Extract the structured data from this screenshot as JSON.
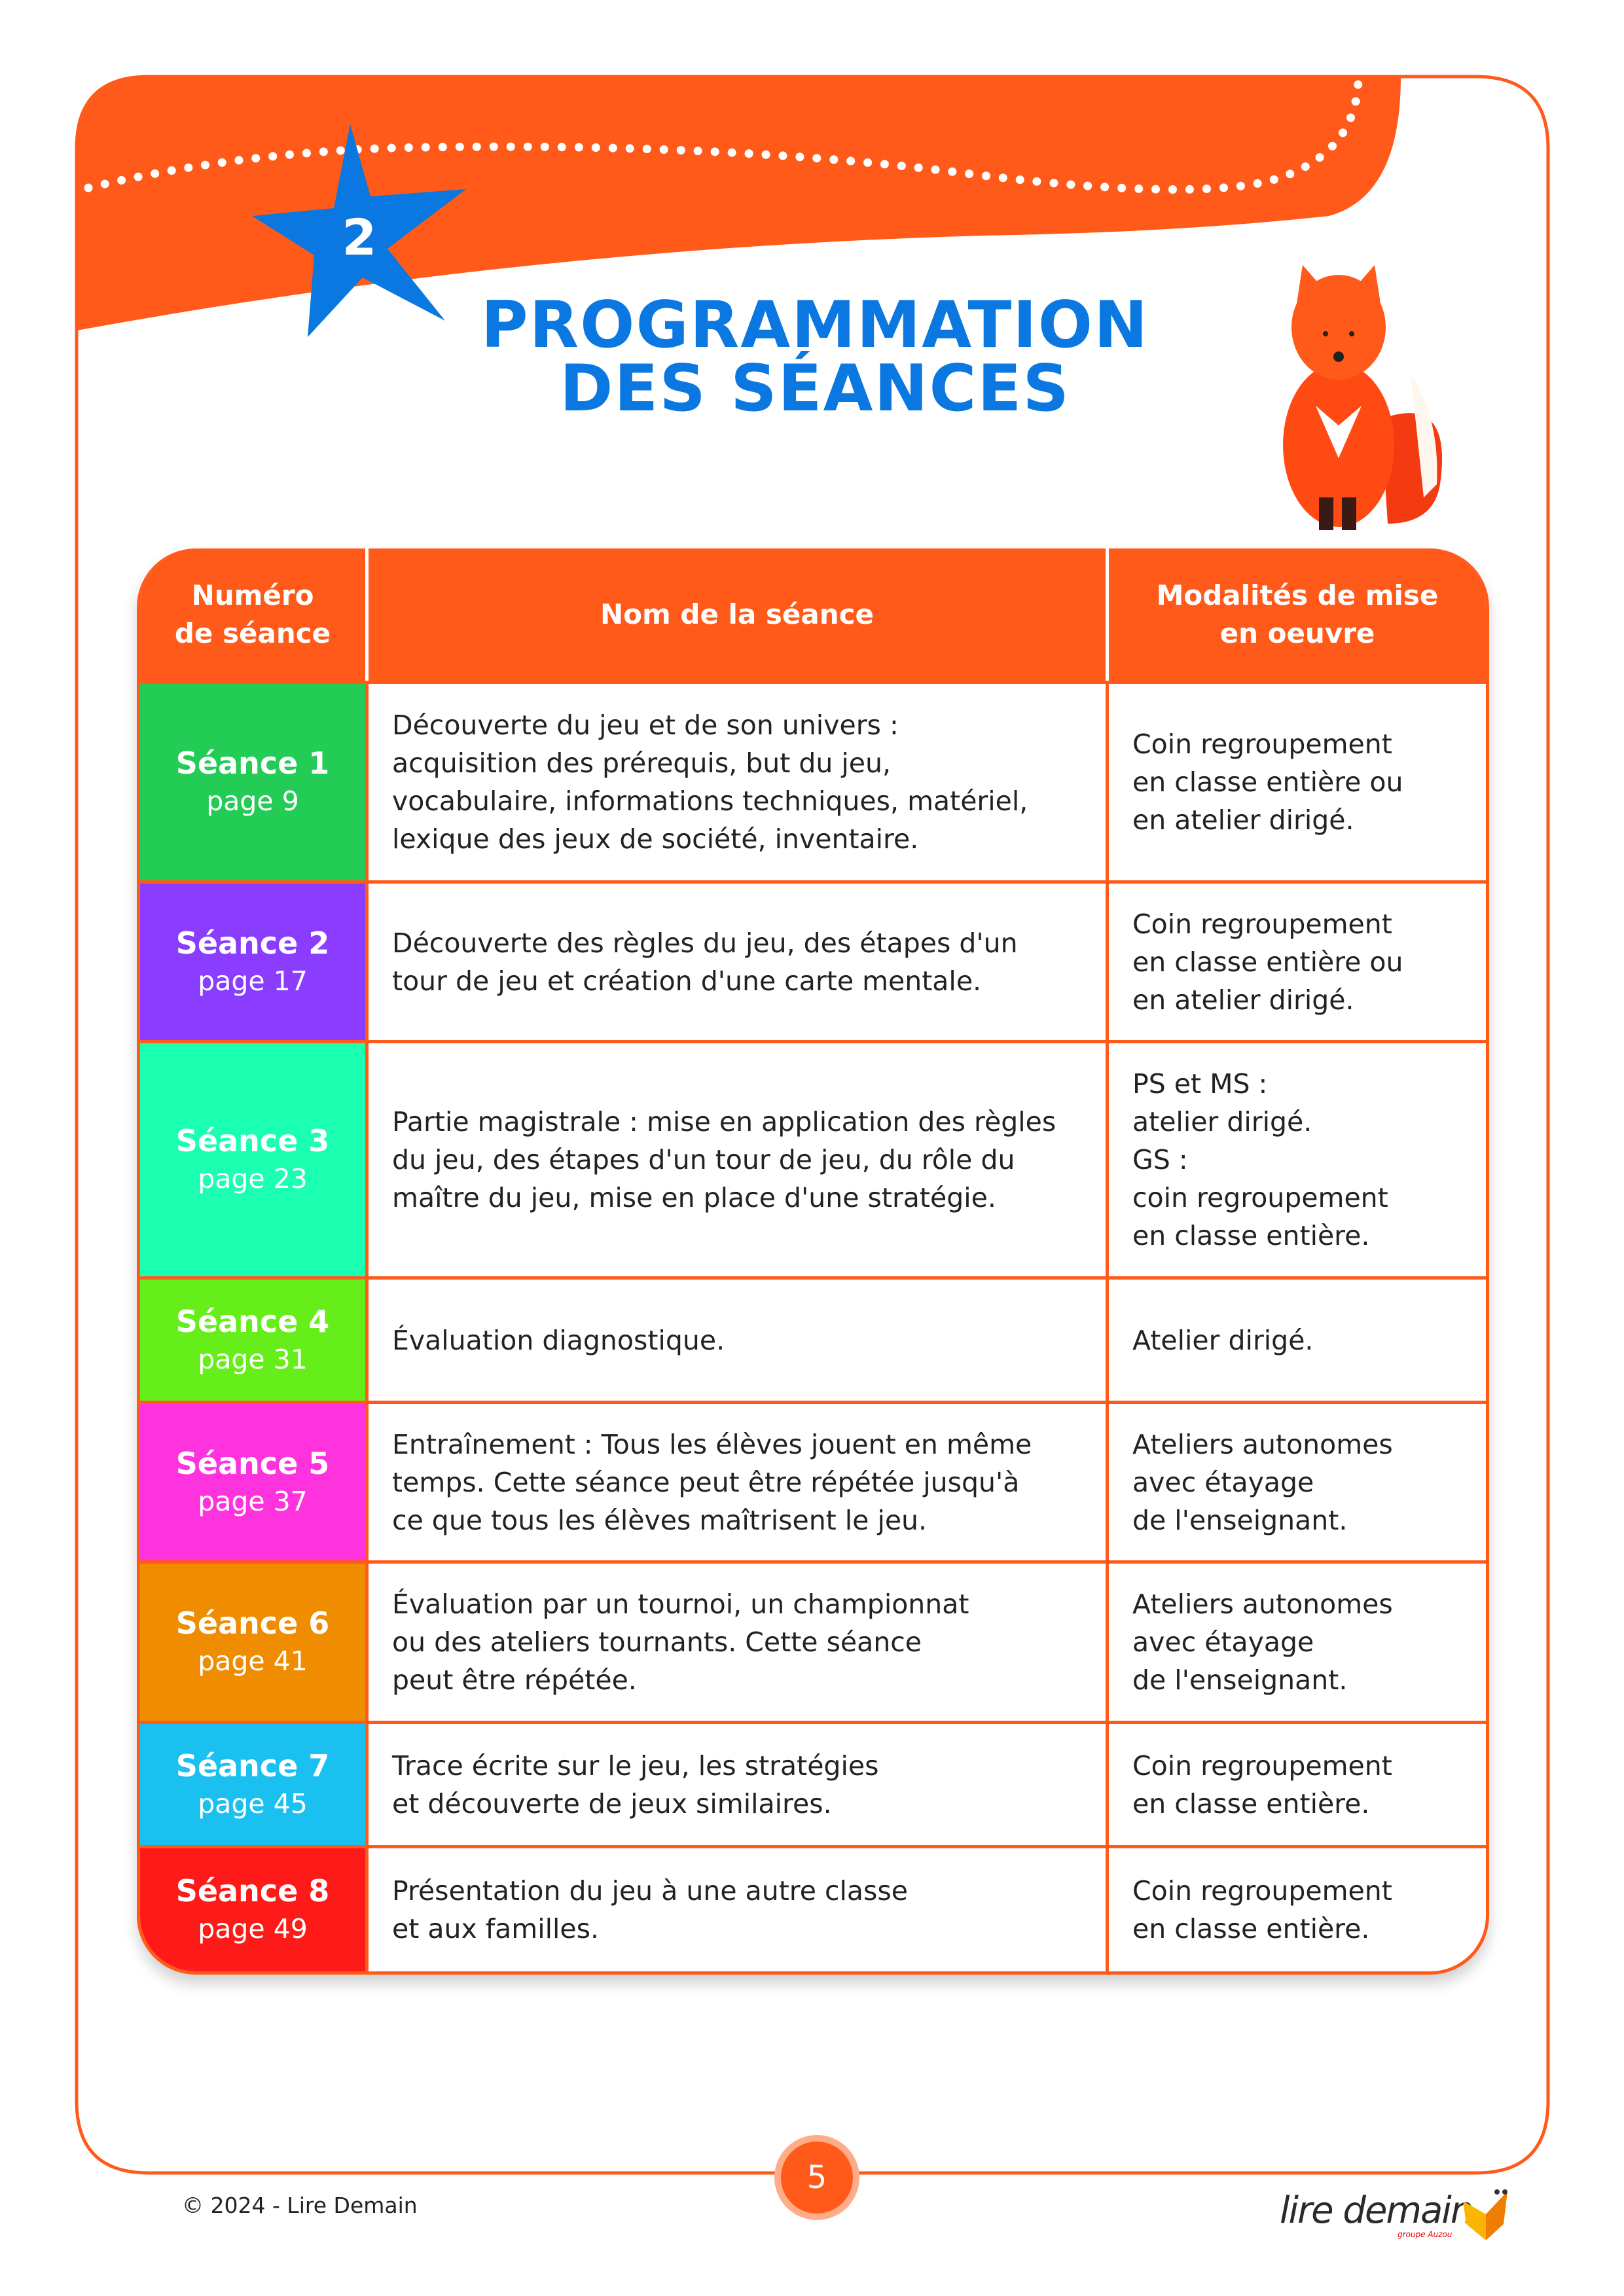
{
  "header": {
    "section_number": "2",
    "title_line1": "PROGRAMMATION",
    "title_line2": "DES SÉANCES"
  },
  "colors": {
    "accent": "#ff5a1a",
    "title_blue": "#0a78e0"
  },
  "table": {
    "columns": [
      "Numéro de séance",
      "Nom de la séance",
      "Modalités de mise en oeuvre"
    ],
    "column_lines": [
      [
        "Numéro",
        "de séance"
      ],
      [
        "Nom de la séance"
      ],
      [
        "Modalités de mise",
        "en oeuvre"
      ]
    ],
    "rows": [
      {
        "seance": "Séance 1",
        "page": "page 9",
        "color": "#22cc55",
        "name": [
          "Découverte du jeu et de son univers :",
          "acquisition des prérequis, but du jeu,",
          "vocabulaire, informations techniques, matériel,",
          "lexique des jeux de société, inventaire."
        ],
        "modalites": [
          "Coin regroupement",
          "en classe entière ou",
          "en atelier dirigé."
        ]
      },
      {
        "seance": "Séance 2",
        "page": "page 17",
        "color": "#8a3cff",
        "name": [
          "Découverte des règles du jeu, des étapes d'un",
          "tour de jeu et création d'une carte mentale."
        ],
        "modalites": [
          "Coin regroupement",
          "en classe entière ou",
          "en atelier dirigé."
        ]
      },
      {
        "seance": "Séance 3",
        "page": "page 23",
        "color": "#1affb0",
        "name": [
          "Partie magistrale : mise en application des règles",
          "du jeu, des étapes d'un tour de jeu, du rôle du",
          "maître du jeu, mise en place d'une stratégie."
        ],
        "modalites": [
          "PS et MS :",
          "atelier dirigé.",
          "GS :",
          "coin regroupement",
          "en classe entière."
        ]
      },
      {
        "seance": "Séance 4",
        "page": "page 31",
        "color": "#66ee1a",
        "name": [
          "Évaluation diagnostique."
        ],
        "modalites": [
          "Atelier dirigé."
        ]
      },
      {
        "seance": "Séance 5",
        "page": "page 37",
        "color": "#ff33dd",
        "name": [
          "Entraînement : Tous les élèves jouent en même",
          "temps. Cette séance peut être répétée jusqu'à",
          "ce que tous les élèves maîtrisent le jeu."
        ],
        "modalites": [
          "Ateliers autonomes",
          "avec étayage",
          "de l'enseignant."
        ]
      },
      {
        "seance": "Séance 6",
        "page": "page 41",
        "color": "#f08c00",
        "name": [
          "Évaluation par un tournoi, un championnat",
          "ou des ateliers tournants. Cette séance",
          "peut être répétée."
        ],
        "modalites": [
          "Ateliers autonomes",
          "avec étayage",
          "de l'enseignant."
        ]
      },
      {
        "seance": "Séance 7",
        "page": "page 45",
        "color": "#1ac0f0",
        "name": [
          "Trace écrite sur le jeu, les stratégies",
          "et découverte de jeux similaires."
        ],
        "modalites": [
          "Coin regroupement",
          "en classe entière."
        ]
      },
      {
        "seance": "Séance 8",
        "page": "page 49",
        "color": "#ff1a1a",
        "name": [
          "Présentation du jeu à une autre classe",
          "et aux familles."
        ],
        "modalites": [
          "Coin regroupement",
          "en classe entière."
        ]
      }
    ]
  },
  "footer": {
    "page_number": "5",
    "copyright": "© 2024 - Lire Demain",
    "logo": "lire demain",
    "logo_sub": "groupe Auzou"
  }
}
